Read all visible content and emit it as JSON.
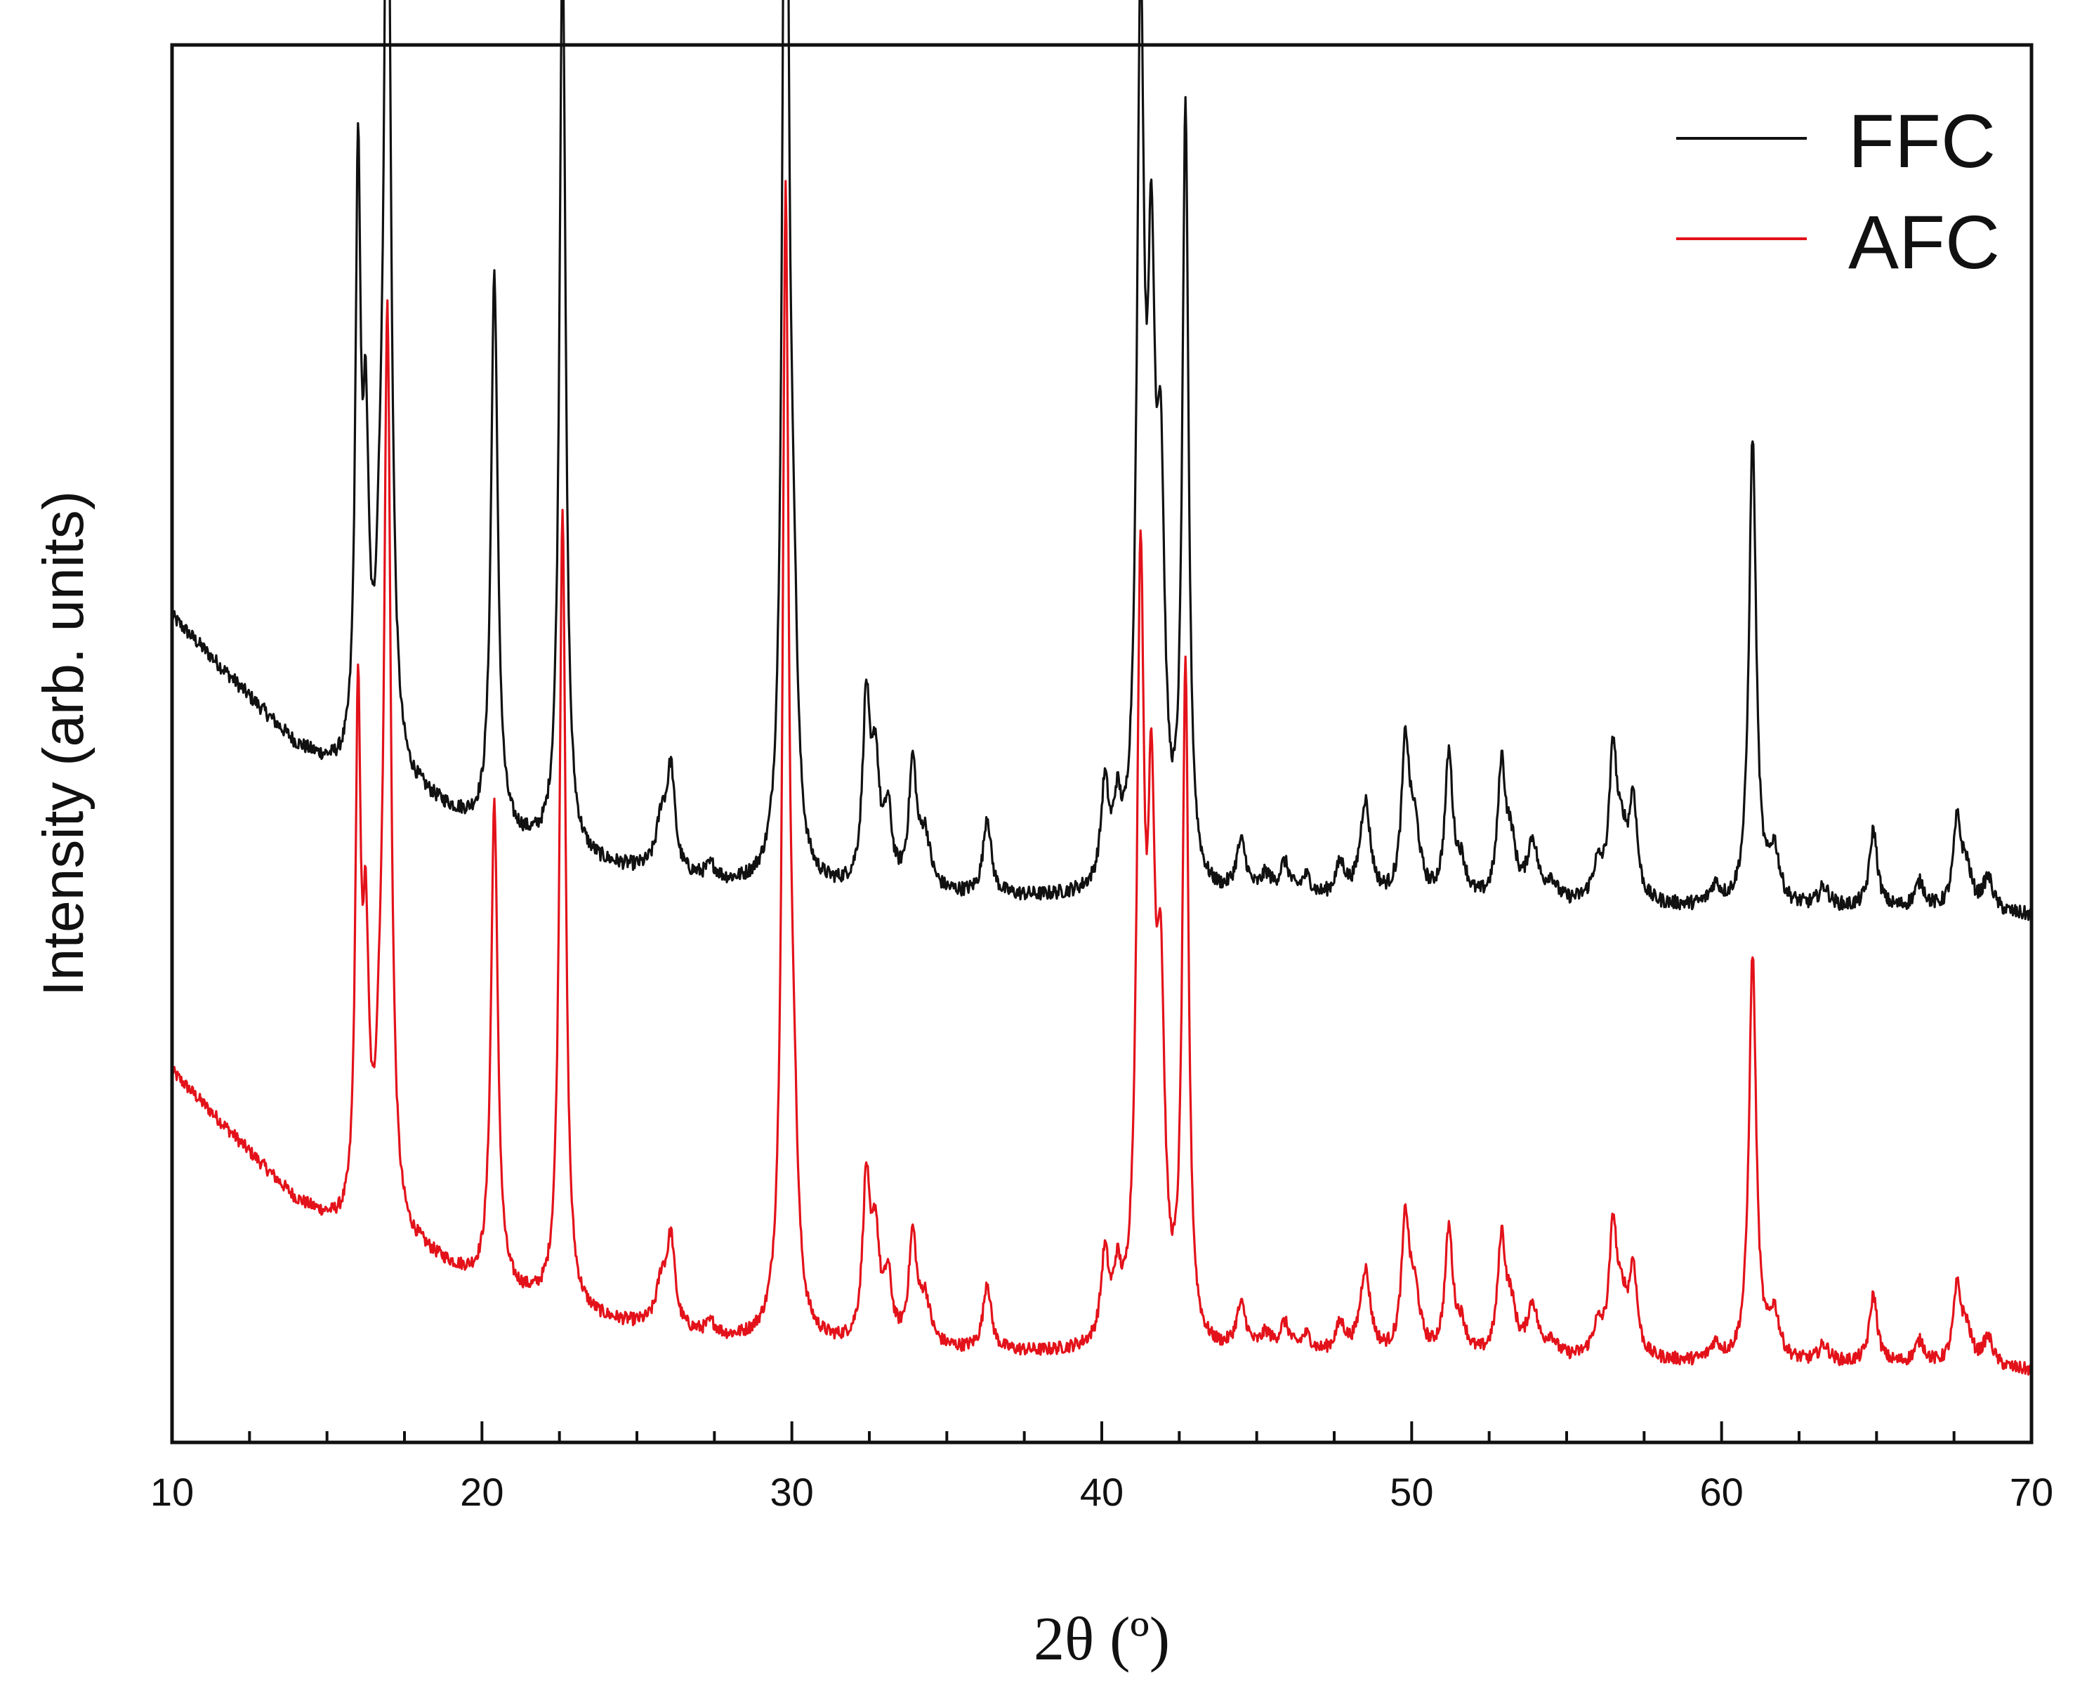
{
  "chart_data": {
    "type": "line",
    "xlabel": "2θ (º)",
    "ylabel": "Intensity (arb. units)",
    "xlim": [
      10,
      70
    ],
    "xticks": [
      10,
      20,
      30,
      40,
      50,
      60,
      70
    ],
    "yticks_shown": false,
    "grid": false,
    "legend": "top-right",
    "baseline": [
      [
        10,
        11.2
      ],
      [
        12,
        10.2
      ],
      [
        14,
        9.2
      ],
      [
        15.9,
        8.6
      ],
      [
        18,
        8.4
      ],
      [
        20,
        7.9
      ],
      [
        22,
        7.6
      ],
      [
        24,
        7.35
      ],
      [
        26,
        7.2
      ],
      [
        28,
        7.05
      ],
      [
        30,
        7.0
      ],
      [
        32,
        6.95
      ],
      [
        35,
        6.9
      ],
      [
        38,
        6.85
      ],
      [
        40,
        6.85
      ],
      [
        43,
        6.8
      ],
      [
        47,
        6.8
      ],
      [
        52,
        6.75
      ],
      [
        56,
        6.75
      ],
      [
        60,
        6.7
      ],
      [
        65,
        6.7
      ],
      [
        70,
        6.6
      ]
    ],
    "peaks": [
      [
        16.0,
        9.0,
        0.1
      ],
      [
        16.25,
        4.6,
        0.12
      ],
      [
        16.7,
        1.8,
        0.15
      ],
      [
        16.95,
        16.0,
        0.13
      ],
      [
        20.4,
        8.6,
        0.13
      ],
      [
        22.6,
        14.2,
        0.12
      ],
      [
        25.8,
        0.8,
        0.2
      ],
      [
        26.1,
        1.5,
        0.15
      ],
      [
        27.4,
        0.2,
        0.2
      ],
      [
        29.8,
        19.7,
        0.12
      ],
      [
        30.05,
        3.0,
        0.15
      ],
      [
        32.4,
        2.8,
        0.14
      ],
      [
        32.7,
        1.8,
        0.15
      ],
      [
        33.1,
        1.1,
        0.15
      ],
      [
        33.9,
        1.9,
        0.15
      ],
      [
        34.3,
        0.8,
        0.2
      ],
      [
        36.3,
        1.2,
        0.15
      ],
      [
        40.1,
        1.5,
        0.15
      ],
      [
        40.5,
        1.0,
        0.15
      ],
      [
        41.25,
        13.0,
        0.14
      ],
      [
        41.6,
        8.0,
        0.15
      ],
      [
        41.9,
        5.4,
        0.15
      ],
      [
        42.7,
        11.8,
        0.12
      ],
      [
        44.5,
        0.8,
        0.2
      ],
      [
        45.3,
        0.3,
        0.2
      ],
      [
        45.9,
        0.5,
        0.2
      ],
      [
        46.6,
        0.3,
        0.2
      ],
      [
        47.7,
        0.5,
        0.2
      ],
      [
        48.5,
        1.5,
        0.2
      ],
      [
        49.8,
        2.3,
        0.15
      ],
      [
        50.1,
        1.0,
        0.2
      ],
      [
        51.2,
        2.2,
        0.15
      ],
      [
        51.6,
        0.5,
        0.2
      ],
      [
        52.9,
        2.0,
        0.15
      ],
      [
        53.2,
        0.8,
        0.2
      ],
      [
        53.9,
        0.9,
        0.2
      ],
      [
        54.5,
        0.3,
        0.2
      ],
      [
        56.0,
        0.5,
        0.2
      ],
      [
        56.5,
        2.2,
        0.15
      ],
      [
        56.8,
        0.8,
        0.2
      ],
      [
        57.15,
        1.5,
        0.15
      ],
      [
        59.8,
        0.3,
        0.2
      ],
      [
        61.0,
        7.2,
        0.14
      ],
      [
        61.7,
        0.8,
        0.2
      ],
      [
        63.3,
        0.3,
        0.2
      ],
      [
        64.9,
        1.2,
        0.15
      ],
      [
        66.4,
        0.4,
        0.2
      ],
      [
        67.6,
        1.3,
        0.15
      ],
      [
        67.9,
        0.6,
        0.2
      ],
      [
        68.6,
        0.5,
        0.2
      ]
    ],
    "series": [
      {
        "name": "FFC",
        "color": "#111111",
        "offset": 0,
        "scale": 1.0
      },
      {
        "name": "AFC",
        "color": "#e3121a",
        "offset": -7.0,
        "scale": 0.87
      }
    ]
  }
}
